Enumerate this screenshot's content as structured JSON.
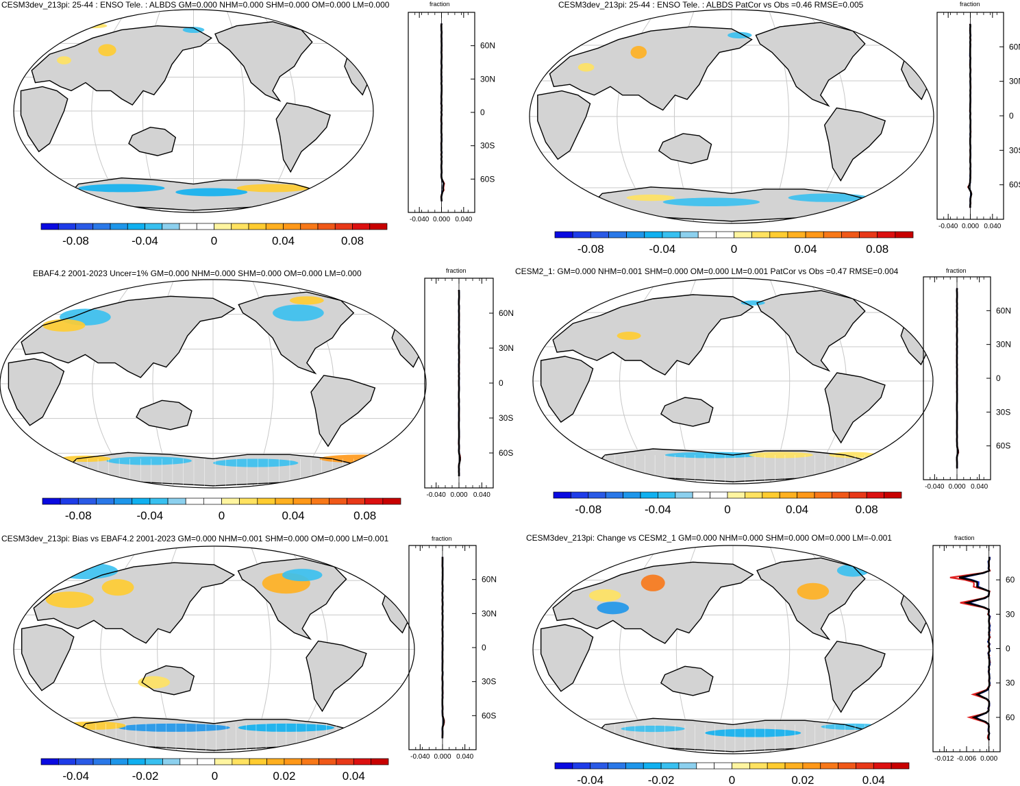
{
  "colors": {
    "ocean": "#ffffff",
    "land": "#d3d3d3",
    "coast": "#000000",
    "grid": "#c8c8c8",
    "series_red": "#e02020",
    "series_blue": "#1030d0",
    "series_black": "#000000"
  },
  "colorbar_palette": [
    "#0a0ae0",
    "#1e3ce8",
    "#2a5ae6",
    "#2a78e8",
    "#1e96ea",
    "#10b0f0",
    "#38c0f0",
    "#8cd0ee",
    "#ffffff",
    "#ffffff",
    "#fff5a0",
    "#ffe260",
    "#ffcc30",
    "#ffb020",
    "#ff9818",
    "#f87818",
    "#f05818",
    "#e83818",
    "#dc1010",
    "#c80000"
  ],
  "chart_data": [
    {
      "type": "map_with_zonal_profile",
      "title": "CESM3dev_213pi: 25-44 : ENSO Tele. : ALBDS GM=0.000 NHM=0.000 SHM=0.000 OM=0.000 LM=0.000",
      "colorbar_ticks": [
        "-0.08",
        "-0.04",
        "0",
        "0.04",
        "0.08"
      ],
      "profile_label": "fraction",
      "profile_xticks": [
        "-0.040",
        "0.000",
        "0.040"
      ],
      "profile_xlim": [
        -0.06,
        0.06
      ],
      "lat_labels": [
        "60N",
        "30N",
        "0",
        "30S",
        "60S"
      ]
    },
    {
      "type": "map_with_zonal_profile",
      "title": "CESM3dev_213pi: 25-44 : ENSO Tele. : ALBDS PatCor vs Obs =0.46 RMSE=0.005",
      "colorbar_ticks": [
        "-0.08",
        "-0.04",
        "0",
        "0.04",
        "0.08"
      ],
      "profile_label": "fraction",
      "profile_xticks": [
        "-0.040",
        "0.000",
        "0.040"
      ],
      "profile_xlim": [
        -0.06,
        0.06
      ],
      "lat_labels": [
        "60N",
        "30N",
        "0",
        "30S",
        "60S"
      ]
    },
    {
      "type": "map_with_zonal_profile",
      "title": "EBAF4.2 2001-2023 Uncer=1% GM=0.000 NHM=0.000 SHM=0.000 OM=0.000 LM=0.000",
      "colorbar_ticks": [
        "-0.08",
        "-0.04",
        "0",
        "0.04",
        "0.08"
      ],
      "profile_label": "fraction",
      "profile_xticks": [
        "-0.040",
        "0.000",
        "0.040"
      ],
      "profile_xlim": [
        -0.06,
        0.06
      ],
      "lat_labels": [
        "60N",
        "30N",
        "0",
        "30S",
        "60S"
      ]
    },
    {
      "type": "map_with_zonal_profile",
      "title": "CESM2_1: GM=0.000 NHM=0.001 SHM=0.000 OM=0.000 LM=0.001 PatCor vs Obs =0.47 RMSE=0.004",
      "colorbar_ticks": [
        "-0.08",
        "-0.04",
        "0",
        "0.04",
        "0.08"
      ],
      "profile_label": "fraction",
      "profile_xticks": [
        "-0.040",
        "0.000",
        "0.040"
      ],
      "profile_xlim": [
        -0.06,
        0.06
      ],
      "lat_labels": [
        "60N",
        "30N",
        "0",
        "30S",
        "60S"
      ]
    },
    {
      "type": "map_with_zonal_profile",
      "title": "CESM3dev_213pi: Bias vs EBAF4.2 2001-2023 GM=0.000 NHM=0.001 SHM=0.000 OM=0.000 LM=0.001",
      "colorbar_ticks": [
        "-0.04",
        "-0.02",
        "0",
        "0.02",
        "0.04"
      ],
      "profile_label": "fraction",
      "profile_xticks": [
        "-0.040",
        "0.000",
        "0.040"
      ],
      "profile_xlim": [
        -0.06,
        0.06
      ],
      "lat_labels": [
        "60N",
        "30N",
        "0",
        "30S",
        "60S"
      ]
    },
    {
      "type": "map_with_zonal_profile",
      "title": "CESM3dev_213pi: Change vs CESM2_1 GM=0.000 NHM=0.000 SHM=0.000 OM=0.000 LM=-0.001",
      "colorbar_ticks": [
        "-0.04",
        "-0.02",
        "0",
        "0.02",
        "0.04"
      ],
      "profile_label": "fraction",
      "profile_xticks": [
        "-0.012",
        "-0.006",
        "0.000"
      ],
      "profile_xlim": [
        -0.015,
        0.003
      ],
      "lat_labels": [
        "60",
        "30",
        "0",
        "30",
        "60"
      ]
    }
  ]
}
